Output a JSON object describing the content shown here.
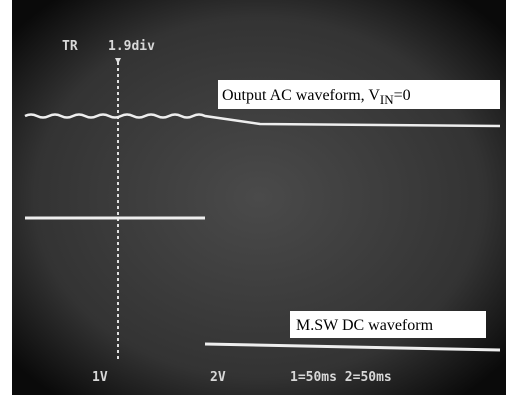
{
  "scope": {
    "trigger_label": "TR",
    "position": "1.9div",
    "ch1_scale": "1V",
    "ch2_scale": "2V",
    "timebase": "1=50ms 2=50ms"
  },
  "annotations": {
    "output": {
      "text": "Output AC waveform, V",
      "subscript": "IN",
      "suffix": "=0"
    },
    "switch": {
      "text": "M.SW DC waveform"
    }
  }
}
